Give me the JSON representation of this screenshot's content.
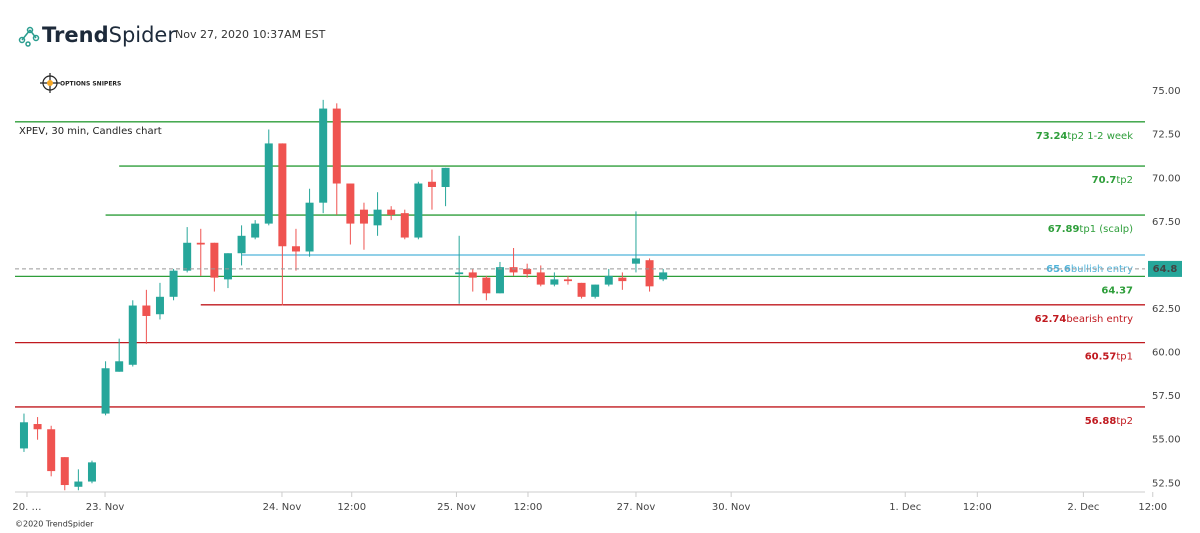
{
  "header": {
    "brand_bold": "Trend",
    "brand_regular": "Spider",
    "timestamp": "Nov 27, 2020 10:37AM EST",
    "badge": "OPTIONS SNIPERS"
  },
  "footer": "©2020 TrendSpider",
  "chart_data": {
    "type": "candlestick",
    "title": "XPEV, 30 min, Candles chart",
    "up_color": "#26a69a",
    "down_color": "#ef5350",
    "x": [
      0,
      1,
      2,
      3,
      4,
      5,
      6,
      7,
      8,
      9,
      10,
      11,
      12,
      13,
      14,
      15,
      16,
      17,
      18,
      19,
      20,
      21,
      22,
      23,
      24,
      25,
      26,
      27,
      28,
      29,
      30,
      31,
      32,
      33,
      34,
      35,
      36,
      37,
      38,
      39,
      40,
      41,
      42,
      43,
      44,
      45,
      46,
      47
    ],
    "open": [
      54.5,
      55.9,
      55.6,
      54.0,
      52.3,
      52.6,
      56.5,
      58.9,
      59.3,
      62.7,
      62.2,
      63.2,
      64.7,
      66.3,
      66.3,
      64.2,
      65.7,
      66.6,
      67.4,
      72.0,
      66.1,
      65.8,
      68.6,
      74.0,
      69.7,
      68.2,
      67.3,
      68.2,
      68.0,
      66.6,
      69.8,
      69.5,
      64.5,
      64.6,
      64.3,
      63.4,
      64.9,
      64.8,
      64.6,
      63.9,
      64.2,
      64.0,
      63.2,
      63.9,
      64.3,
      65.1,
      65.3,
      64.2
    ],
    "high": [
      56.5,
      56.3,
      55.8,
      54.0,
      53.3,
      53.8,
      59.5,
      60.8,
      63.0,
      63.6,
      64.0,
      64.8,
      67.2,
      67.1,
      66.3,
      65.7,
      67.3,
      67.6,
      72.8,
      72.0,
      67.1,
      69.4,
      74.5,
      74.3,
      69.7,
      68.6,
      69.2,
      68.4,
      68.2,
      69.8,
      70.5,
      70.6,
      66.7,
      64.8,
      64.4,
      65.2,
      66.0,
      65.1,
      65.0,
      64.6,
      64.4,
      64.0,
      63.9,
      64.8,
      64.6,
      68.1,
      65.4,
      64.8
    ],
    "low": [
      54.3,
      55.0,
      52.9,
      52.1,
      52.1,
      52.5,
      56.4,
      58.9,
      59.2,
      60.5,
      61.9,
      63.0,
      64.6,
      64.4,
      63.5,
      63.7,
      65.0,
      66.5,
      67.3,
      62.7,
      64.7,
      65.5,
      68.0,
      67.9,
      66.2,
      65.9,
      66.7,
      67.6,
      66.5,
      66.5,
      68.2,
      68.4,
      62.8,
      63.5,
      63.0,
      63.4,
      64.4,
      64.3,
      63.8,
      63.8,
      63.9,
      63.1,
      63.1,
      63.8,
      63.6,
      64.6,
      63.5,
      64.1
    ],
    "close": [
      56.0,
      55.6,
      53.2,
      52.4,
      52.6,
      53.7,
      59.1,
      59.5,
      62.7,
      62.1,
      63.2,
      64.7,
      66.3,
      66.2,
      64.3,
      65.7,
      66.7,
      67.4,
      72.0,
      66.1,
      65.8,
      68.6,
      74.0,
      69.7,
      67.4,
      67.4,
      68.2,
      67.9,
      66.6,
      69.7,
      69.5,
      70.6,
      64.6,
      64.3,
      63.4,
      64.9,
      64.6,
      64.5,
      63.9,
      64.2,
      64.1,
      63.2,
      63.9,
      64.4,
      64.1,
      65.4,
      63.8,
      64.6
    ],
    "xlim": [
      -0.66,
      82.43
    ],
    "xticks": [
      {
        "value": 0.22,
        "label": "20. …"
      },
      {
        "value": 5.96,
        "label": "23. Nov"
      },
      {
        "value": 18.97,
        "label": "24. Nov"
      },
      {
        "value": 24.1,
        "label": "12:00"
      },
      {
        "value": 31.8,
        "label": "25. Nov"
      },
      {
        "value": 37.06,
        "label": "12:00"
      },
      {
        "value": 45,
        "label": "27. Nov"
      },
      {
        "value": 52,
        "label": "30. Nov"
      },
      {
        "value": 64.8,
        "label": "1. Dec"
      },
      {
        "value": 70.1,
        "label": "12:00"
      },
      {
        "value": 77.9,
        "label": "2. Dec"
      },
      {
        "value": 83,
        "label": "12:00"
      }
    ],
    "ylim": [
      52.0,
      76.5
    ],
    "yticks": [
      {
        "value": 52.5,
        "label": "52.50"
      },
      {
        "value": 55,
        "label": "55.00"
      },
      {
        "value": 57.5,
        "label": "57.50"
      },
      {
        "value": 60,
        "label": "60.00"
      },
      {
        "value": 62.5,
        "label": "62.50"
      },
      {
        "value": 65,
        "label": "65.00"
      },
      {
        "value": 67.5,
        "label": "67.50"
      },
      {
        "value": 70,
        "label": "70.00"
      },
      {
        "value": 72.5,
        "label": "72.50"
      },
      {
        "value": 75,
        "label": "75.00"
      }
    ],
    "levels": [
      {
        "value": 73.24,
        "label": "tp2 1-2 week",
        "color": "#2e9e3a",
        "from": -0.66
      },
      {
        "value": 70.7,
        "label": "tp2",
        "color": "#2e9e3a",
        "from": 7
      },
      {
        "value": 67.89,
        "label": "tp1 (scalp)",
        "color": "#2e9e3a",
        "from": 6
      },
      {
        "value": 65.6,
        "label": "bullish entry",
        "color": "#4fb3d9",
        "from": 16
      },
      {
        "value": 64.37,
        "color": "#2e9e3a",
        "from": -0.66
      },
      {
        "value": 62.74,
        "label": "bearish entry",
        "color": "#c0191f",
        "from": 13
      },
      {
        "value": 60.57,
        "label": "tp1",
        "color": "#c0191f",
        "from": -0.66
      },
      {
        "value": 56.88,
        "label": "tp2",
        "color": "#c0191f",
        "from": -0.66
      }
    ],
    "last_price": 64.8
  }
}
